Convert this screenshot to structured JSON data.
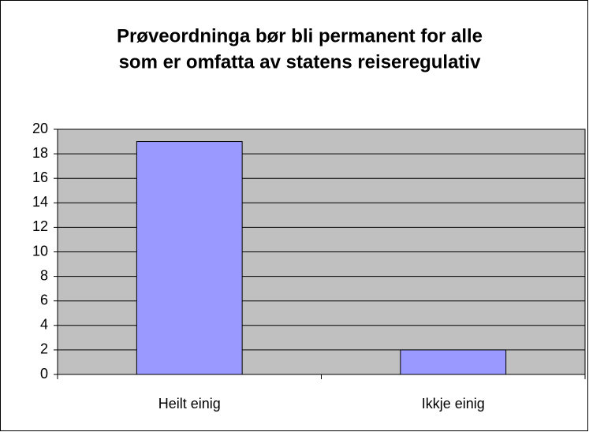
{
  "chart_data": {
    "type": "bar",
    "title": [
      "Prøveordninga bør bli permanent for alle",
      "som er omfatta av statens reiseregulativ"
    ],
    "categories": [
      "Heilt einig",
      "Ikkje einig"
    ],
    "values": [
      19,
      2
    ],
    "color": "#9999ff",
    "ylim": [
      0,
      20
    ],
    "yticks": [
      0,
      2,
      4,
      6,
      8,
      10,
      12,
      14,
      16,
      18,
      20
    ],
    "grid": true
  }
}
